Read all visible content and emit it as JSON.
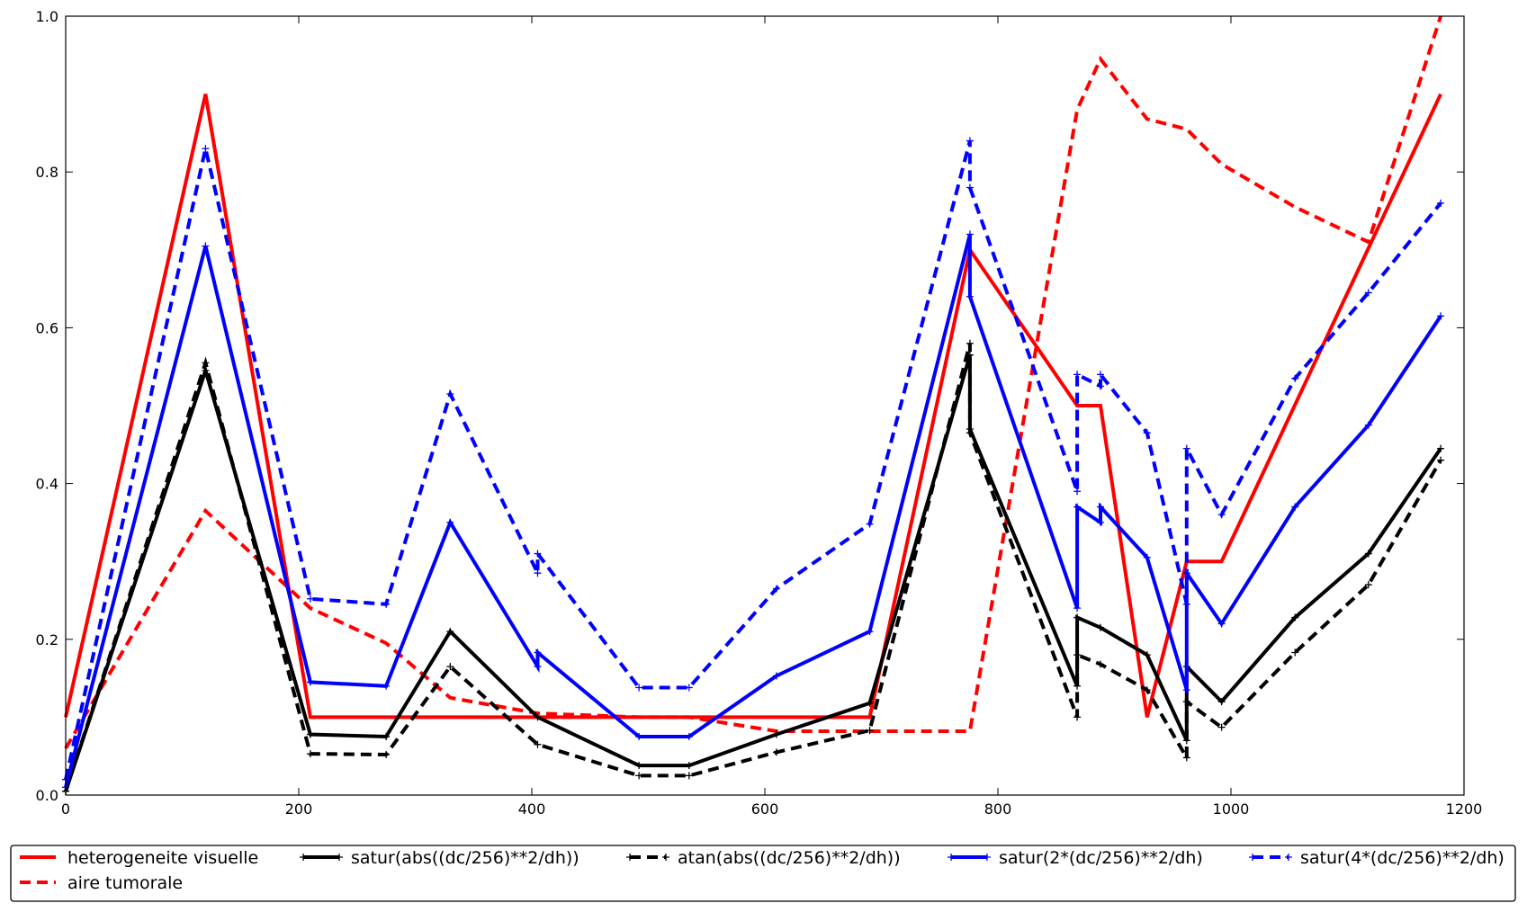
{
  "chart_data": {
    "type": "line",
    "title": "",
    "xlabel": "",
    "ylabel": "",
    "xlim": [
      0,
      1200
    ],
    "ylim": [
      0,
      1.0
    ],
    "grid": false,
    "legend_placement": "bottom",
    "x_ticks": [
      "0",
      "200",
      "400",
      "600",
      "800",
      "1000",
      "1200"
    ],
    "y_ticks": [
      "0.0",
      "0.2",
      "0.4",
      "0.6",
      "0.8",
      "1.0"
    ],
    "series": [
      {
        "name": "heterogeneite visuelle",
        "color": "#ff0000",
        "line_style": "solid",
        "marker": "none",
        "x": [
          0,
          120,
          210,
          690,
          776,
          868,
          888,
          928,
          962,
          992,
          1180
        ],
        "y": [
          0.1,
          0.9,
          0.1,
          0.1,
          0.7,
          0.5,
          0.5,
          0.1,
          0.3,
          0.3,
          0.9
        ]
      },
      {
        "name": "aire tumorale",
        "color": "#ff0000",
        "line_style": "dashed",
        "marker": "none",
        "x": [
          0,
          120,
          210,
          275,
          330,
          405,
          492,
          535,
          610,
          690,
          776,
          868,
          888,
          928,
          962,
          992,
          1055,
          1118,
          1180
        ],
        "y": [
          0.06,
          0.365,
          0.24,
          0.195,
          0.125,
          0.105,
          0.1,
          0.1,
          0.082,
          0.082,
          0.082,
          0.88,
          0.945,
          0.868,
          0.855,
          0.81,
          0.755,
          0.71,
          1.0
        ]
      },
      {
        "name": "satur(abs((dc/256)**2/dh))",
        "color": "#000000",
        "line_style": "solid",
        "marker": "+",
        "x": [
          0,
          120,
          210,
          275,
          330,
          405,
          492,
          535,
          610,
          690,
          776,
          776,
          868,
          868,
          888,
          928,
          962,
          962,
          992,
          1055,
          1118,
          1180
        ],
        "y": [
          0.005,
          0.545,
          0.078,
          0.075,
          0.21,
          0.1,
          0.038,
          0.038,
          0.078,
          0.118,
          0.565,
          0.47,
          0.14,
          0.228,
          0.215,
          0.18,
          0.07,
          0.165,
          0.12,
          0.228,
          0.31,
          0.445
        ]
      },
      {
        "name": "atan(abs((dc/256)**2/dh))",
        "color": "#000000",
        "line_style": "dashed",
        "marker": "+",
        "x": [
          0,
          120,
          210,
          275,
          330,
          405,
          492,
          535,
          610,
          690,
          776,
          776,
          868,
          868,
          888,
          928,
          962,
          962,
          992,
          1055,
          1118,
          1180
        ],
        "y": [
          0.005,
          0.555,
          0.053,
          0.052,
          0.165,
          0.065,
          0.025,
          0.025,
          0.055,
          0.083,
          0.58,
          0.465,
          0.1,
          0.18,
          0.168,
          0.135,
          0.048,
          0.12,
          0.087,
          0.183,
          0.27,
          0.43
        ]
      },
      {
        "name": "satur(2*(dc/256)**2/dh)",
        "color": "#0000ff",
        "line_style": "solid",
        "marker": "+",
        "x": [
          0,
          120,
          210,
          275,
          330,
          405,
          405,
          492,
          535,
          610,
          690,
          776,
          776,
          868,
          868,
          888,
          888,
          928,
          962,
          962,
          992,
          1055,
          1118,
          1180
        ],
        "y": [
          0.01,
          0.705,
          0.145,
          0.14,
          0.35,
          0.165,
          0.183,
          0.075,
          0.075,
          0.153,
          0.21,
          0.72,
          0.64,
          0.24,
          0.37,
          0.35,
          0.37,
          0.305,
          0.135,
          0.285,
          0.22,
          0.37,
          0.475,
          0.615
        ]
      },
      {
        "name": "satur(4*(dc/256)**2/dh)",
        "color": "#0000ff",
        "line_style": "dashed",
        "marker": "+",
        "x": [
          0,
          120,
          210,
          275,
          330,
          405,
          405,
          492,
          535,
          610,
          690,
          776,
          776,
          868,
          868,
          888,
          888,
          928,
          962,
          962,
          992,
          1055,
          1118,
          1180
        ],
        "y": [
          0.02,
          0.83,
          0.252,
          0.245,
          0.515,
          0.285,
          0.31,
          0.138,
          0.138,
          0.265,
          0.348,
          0.84,
          0.78,
          0.39,
          0.54,
          0.525,
          0.54,
          0.465,
          0.245,
          0.445,
          0.36,
          0.535,
          0.645,
          0.76
        ]
      }
    ]
  }
}
